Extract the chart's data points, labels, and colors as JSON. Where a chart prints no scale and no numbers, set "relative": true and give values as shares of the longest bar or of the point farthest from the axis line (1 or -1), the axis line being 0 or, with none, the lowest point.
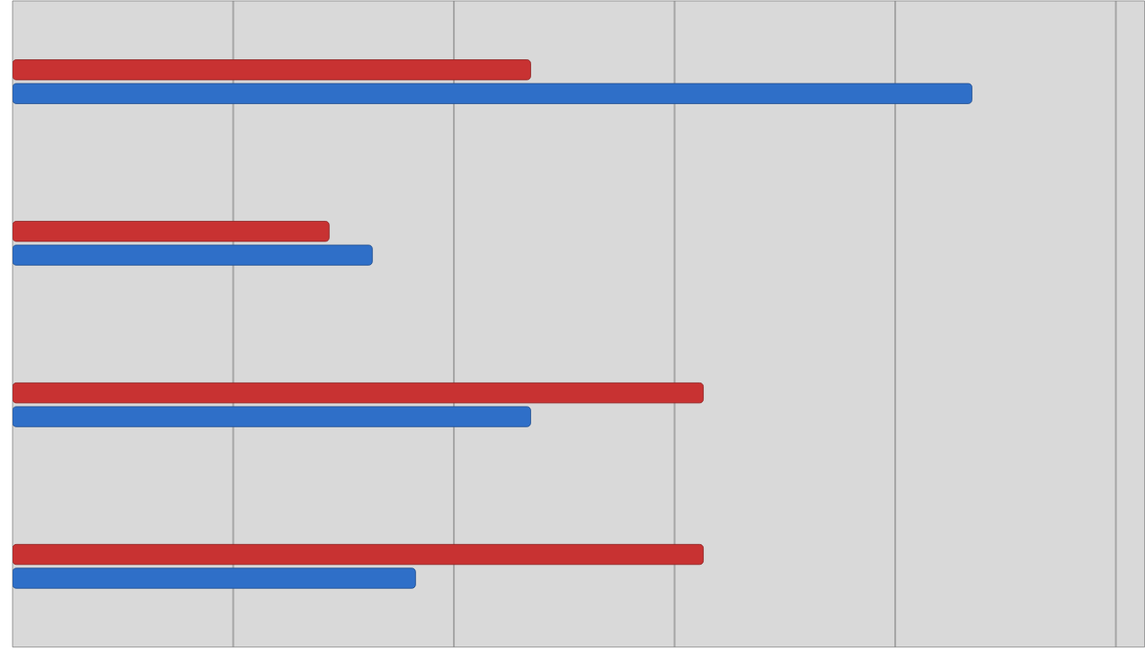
{
  "chart_data": {
    "type": "bar",
    "orientation": "horizontal",
    "relative": true,
    "grid": "x",
    "categories": [
      null,
      null,
      null,
      null
    ],
    "series": [
      {
        "color": "#c83232",
        "values": [
          0.54,
          0.33,
          0.72,
          0.72
        ]
      },
      {
        "color": "#2f6fc8",
        "values": [
          1,
          0.375,
          0.54,
          0.42
        ]
      }
    ]
  }
}
